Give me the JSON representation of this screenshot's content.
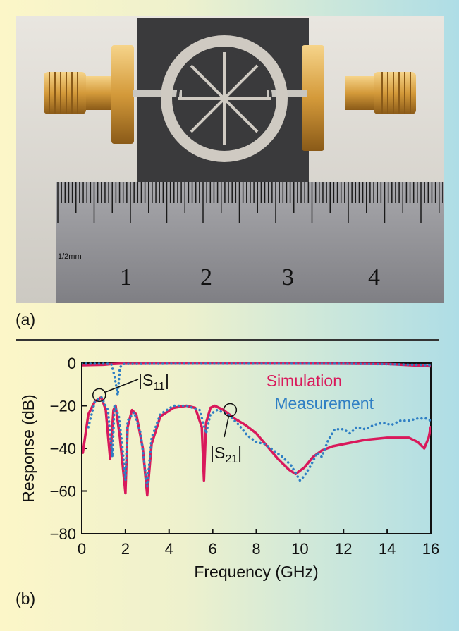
{
  "panels": {
    "a_label": "(a)",
    "b_label": "(b)"
  },
  "photo": {
    "ruler_unit_label": "1/2mm",
    "ruler_numbers": [
      "1",
      "2",
      "3",
      "4"
    ]
  },
  "colors": {
    "simulation": "#d9195b",
    "measurement": "#2f7fc4"
  },
  "chart_data": {
    "type": "line",
    "xlabel": "Frequency (GHz)",
    "ylabel": "Response (dB)",
    "xlim": [
      0,
      16
    ],
    "ylim": [
      -80,
      0
    ],
    "xticks": [
      0,
      2,
      4,
      6,
      8,
      10,
      12,
      14,
      16
    ],
    "yticks": [
      0,
      -20,
      -40,
      -60,
      -80
    ],
    "grid": false,
    "legend": "top-right",
    "annotations": [
      "|S11|",
      "|S21|"
    ],
    "series": [
      {
        "name": "Simulation",
        "style": "solid",
        "color": "#d9195b",
        "curve": "|S21|",
        "points": [
          [
            0.05,
            -42
          ],
          [
            0.3,
            -24
          ],
          [
            0.6,
            -18
          ],
          [
            0.9,
            -16
          ],
          [
            1.1,
            -22
          ],
          [
            1.3,
            -45
          ],
          [
            1.45,
            -22
          ],
          [
            1.55,
            -20
          ],
          [
            1.75,
            -35
          ],
          [
            2.0,
            -61
          ],
          [
            2.1,
            -30
          ],
          [
            2.3,
            -22
          ],
          [
            2.5,
            -24
          ],
          [
            2.8,
            -40
          ],
          [
            3.0,
            -62
          ],
          [
            3.2,
            -38
          ],
          [
            3.6,
            -25
          ],
          [
            4.2,
            -21
          ],
          [
            4.8,
            -20
          ],
          [
            5.2,
            -21
          ],
          [
            5.5,
            -30
          ],
          [
            5.6,
            -55
          ],
          [
            5.7,
            -28
          ],
          [
            5.9,
            -21
          ],
          [
            6.1,
            -20
          ],
          [
            6.5,
            -22
          ],
          [
            7.0,
            -26
          ],
          [
            7.5,
            -29
          ],
          [
            8.0,
            -33
          ],
          [
            8.5,
            -39
          ],
          [
            9.0,
            -45
          ],
          [
            9.5,
            -50
          ],
          [
            9.8,
            -52
          ],
          [
            10.2,
            -49
          ],
          [
            10.6,
            -44
          ],
          [
            11.0,
            -41
          ],
          [
            11.5,
            -39
          ],
          [
            12.0,
            -38
          ],
          [
            13.0,
            -36
          ],
          [
            14.0,
            -35
          ],
          [
            15.0,
            -35
          ],
          [
            15.4,
            -37
          ],
          [
            15.7,
            -40
          ],
          [
            15.9,
            -35
          ],
          [
            16.0,
            -30
          ]
        ]
      },
      {
        "name": "Simulation",
        "style": "solid",
        "color": "#d9195b",
        "curve": "|S11|",
        "points": [
          [
            0.0,
            -1
          ],
          [
            1.0,
            -0.8
          ],
          [
            1.3,
            -0.5
          ],
          [
            1.7,
            -0.3
          ],
          [
            1.85,
            -0.2
          ],
          [
            2.0,
            -0.3
          ],
          [
            4.0,
            -0.2
          ],
          [
            8.0,
            -0.2
          ],
          [
            12.0,
            -0.3
          ],
          [
            14.0,
            -0.4
          ],
          [
            16.0,
            -1.5
          ]
        ]
      },
      {
        "name": "Measurement",
        "style": "dotted",
        "color": "#2f7fc4",
        "curve": "|S21|",
        "points": [
          [
            0.3,
            -30
          ],
          [
            0.6,
            -18
          ],
          [
            0.9,
            -16
          ],
          [
            1.2,
            -22
          ],
          [
            1.4,
            -44
          ],
          [
            1.5,
            -20
          ],
          [
            1.7,
            -25
          ],
          [
            1.85,
            -38
          ],
          [
            2.0,
            -55
          ],
          [
            2.1,
            -27
          ],
          [
            2.4,
            -23
          ],
          [
            2.7,
            -33
          ],
          [
            3.0,
            -58
          ],
          [
            3.2,
            -35
          ],
          [
            3.6,
            -24
          ],
          [
            4.2,
            -20
          ],
          [
            4.8,
            -20
          ],
          [
            5.4,
            -22
          ],
          [
            5.7,
            -33
          ],
          [
            5.9,
            -24
          ],
          [
            6.2,
            -22
          ],
          [
            6.7,
            -24
          ],
          [
            7.2,
            -29
          ],
          [
            7.6,
            -34
          ],
          [
            8.0,
            -37
          ],
          [
            8.4,
            -38
          ],
          [
            8.8,
            -41
          ],
          [
            9.2,
            -44
          ],
          [
            9.6,
            -48
          ],
          [
            10.0,
            -55
          ],
          [
            10.2,
            -53
          ],
          [
            10.5,
            -48
          ],
          [
            10.8,
            -42
          ],
          [
            11.0,
            -44
          ],
          [
            11.3,
            -36
          ],
          [
            11.6,
            -31
          ],
          [
            12.0,
            -31
          ],
          [
            12.3,
            -33
          ],
          [
            12.6,
            -30
          ],
          [
            13.0,
            -31
          ],
          [
            13.4,
            -29
          ],
          [
            13.8,
            -28
          ],
          [
            14.2,
            -29
          ],
          [
            14.6,
            -27
          ],
          [
            15.0,
            -27
          ],
          [
            15.4,
            -26
          ],
          [
            15.8,
            -26
          ],
          [
            16.0,
            -27
          ]
        ]
      },
      {
        "name": "Measurement",
        "style": "dotted",
        "color": "#2f7fc4",
        "curve": "|S11|",
        "points": [
          [
            0.0,
            -0.3
          ],
          [
            1.0,
            -0.3
          ],
          [
            1.35,
            -0.4
          ],
          [
            1.5,
            -6
          ],
          [
            1.65,
            -15
          ],
          [
            1.75,
            -2
          ],
          [
            1.9,
            -0.4
          ],
          [
            4.0,
            -0.3
          ],
          [
            8.0,
            -0.3
          ],
          [
            12.0,
            -0.3
          ],
          [
            14.0,
            -0.5
          ],
          [
            16.0,
            -1
          ]
        ]
      }
    ],
    "legend_entries": [
      "Simulation",
      "Measurement"
    ]
  }
}
